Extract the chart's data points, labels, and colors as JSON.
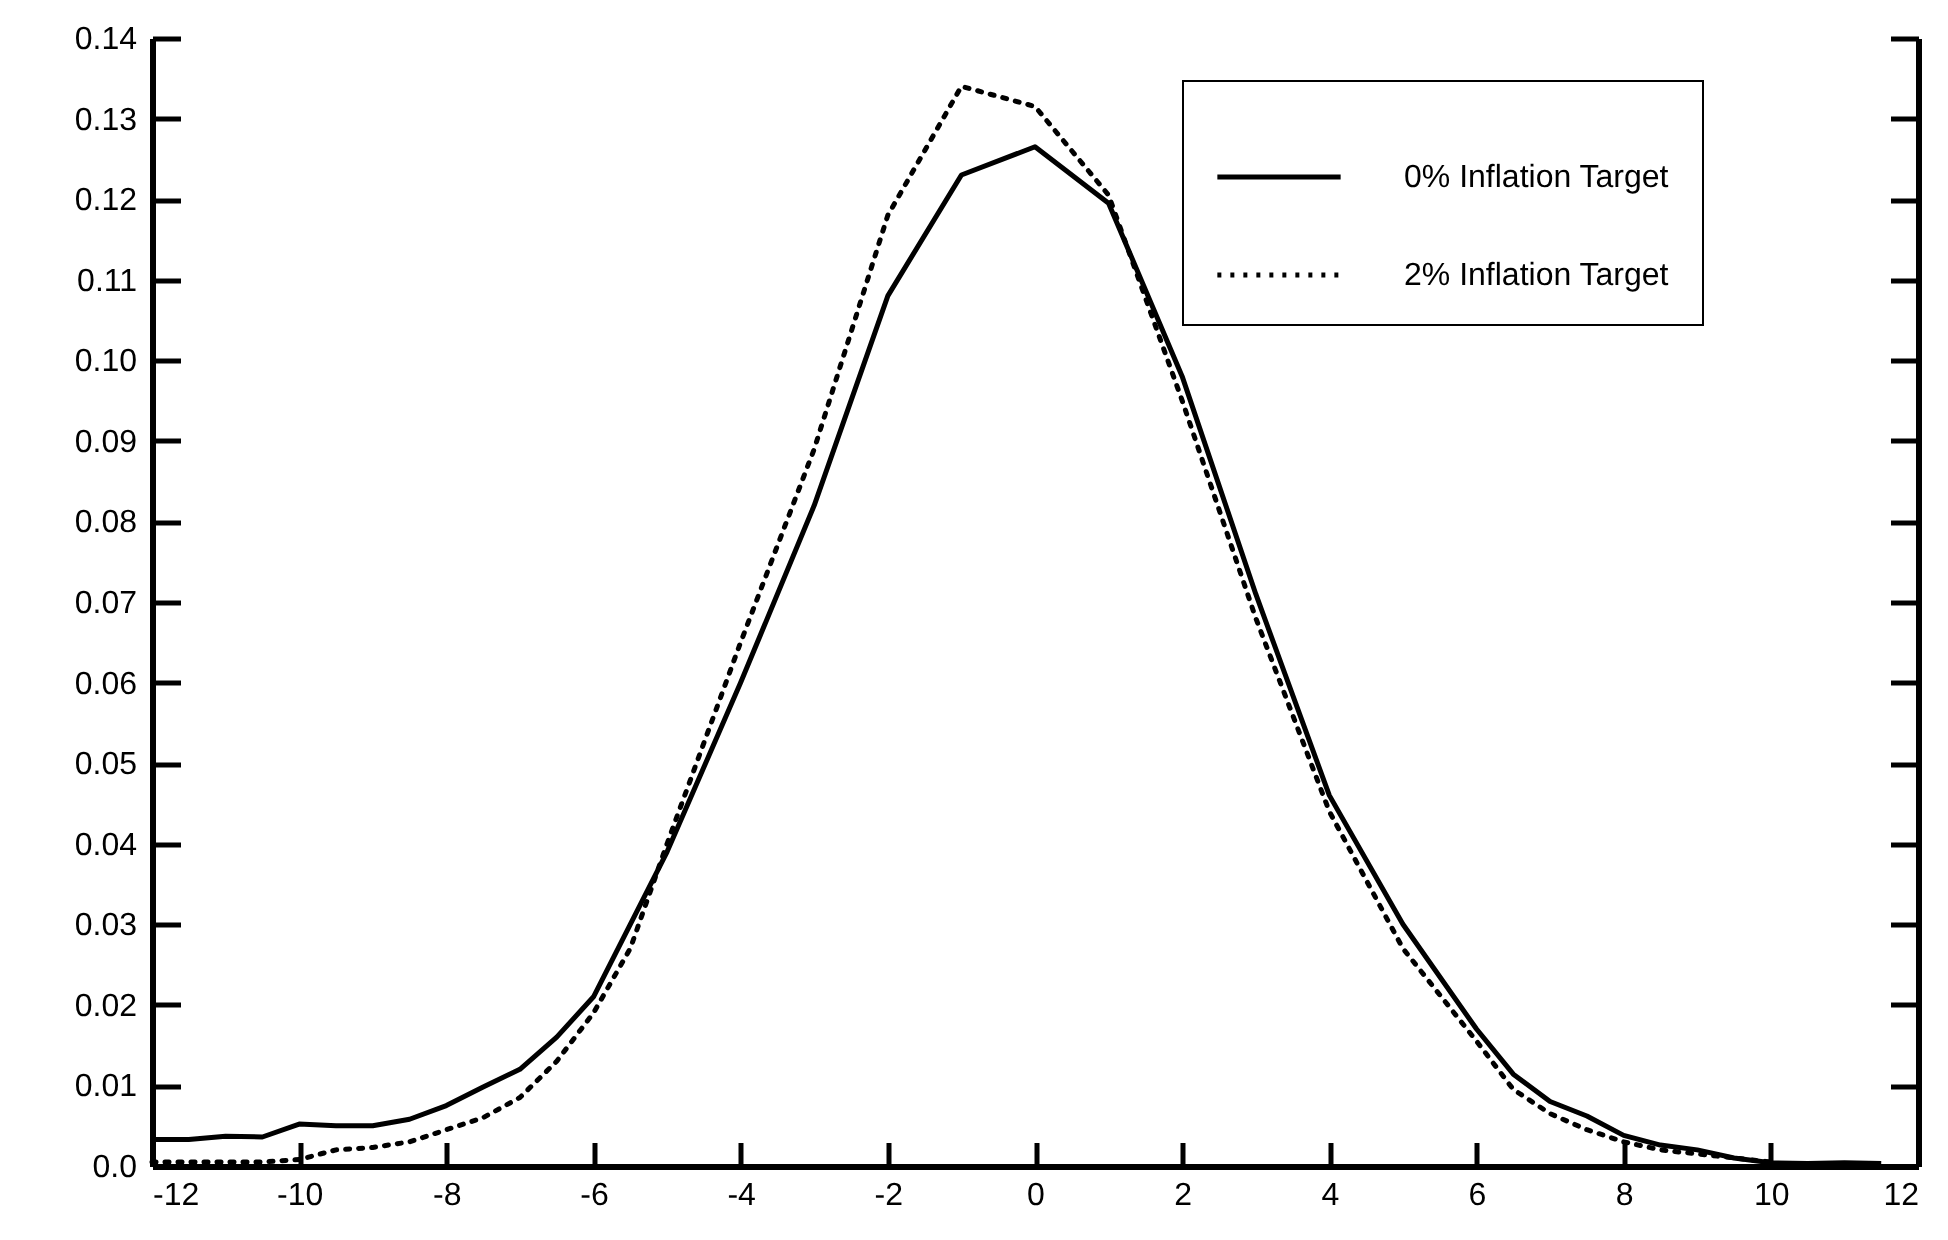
{
  "chart_data": {
    "type": "line",
    "xlim": [
      -12,
      12
    ],
    "xticks": [
      -12,
      -10,
      -8,
      -6,
      -4,
      -2,
      0,
      2,
      4,
      6,
      8,
      10,
      12
    ],
    "ylim": [
      0,
      0.14
    ],
    "yticks": [
      {
        "value": 0,
        "label": "0.0"
      },
      0.01,
      0.02,
      0.03,
      0.04,
      0.05,
      0.06,
      0.07,
      0.08,
      0.09,
      {
        "value": 0.1,
        "label": "0.10"
      },
      0.11,
      0.12,
      0.13,
      0.14
    ],
    "grid": false,
    "legend": "top right",
    "marker": "none",
    "series": [
      {
        "name": "0% Inflation Target",
        "color": "#000000",
        "line_style": "solid",
        "x": [
          -12,
          -11.5,
          -11,
          -10.5,
          -10,
          -9.5,
          -9,
          -8.5,
          -8,
          -7.5,
          -7,
          -6.5,
          -6,
          -5.5,
          -5,
          -4,
          -3,
          -2,
          -1,
          0,
          1,
          2,
          3,
          4,
          5,
          6,
          6.5,
          7,
          7.5,
          8,
          8.5,
          9,
          9.5,
          10,
          10.5,
          11,
          11.5
        ],
        "values": [
          0.0033,
          0.0033,
          0.0037,
          0.0036,
          0.0052,
          0.005,
          0.005,
          0.0058,
          0.0075,
          0.0098,
          0.012,
          0.016,
          0.021,
          0.03,
          0.039,
          0.06,
          0.082,
          0.108,
          0.123,
          0.1265,
          0.1195,
          0.098,
          0.071,
          0.046,
          0.03,
          0.017,
          0.0114,
          0.008,
          0.0062,
          0.0038,
          0.0026,
          0.002,
          0.001,
          0.0004,
          0.0003,
          0.0004,
          0.0003
        ]
      },
      {
        "name": "2% Inflation Target",
        "color": "#000000",
        "line_style": "dotted",
        "x": [
          -12,
          -11.5,
          -11,
          -10.5,
          -10,
          -9.5,
          -9,
          -8.5,
          -8,
          -7.5,
          -7,
          -6.5,
          -6,
          -5.5,
          -5,
          -4,
          -3,
          -2,
          -1,
          0,
          1,
          2,
          3,
          4,
          5,
          6,
          6.5,
          7,
          7.5,
          8,
          8.5,
          9,
          9.5,
          10
        ],
        "values": [
          0.0005,
          0.0005,
          0.0005,
          0.0005,
          0.0008,
          0.002,
          0.0023,
          0.003,
          0.0045,
          0.006,
          0.0085,
          0.013,
          0.019,
          0.027,
          0.04,
          0.065,
          0.089,
          0.118,
          0.134,
          0.1315,
          0.1205,
          0.095,
          0.068,
          0.044,
          0.027,
          0.0155,
          0.0095,
          0.0065,
          0.0045,
          0.003,
          0.002,
          0.0015,
          0.001,
          0.0005
        ]
      }
    ]
  }
}
